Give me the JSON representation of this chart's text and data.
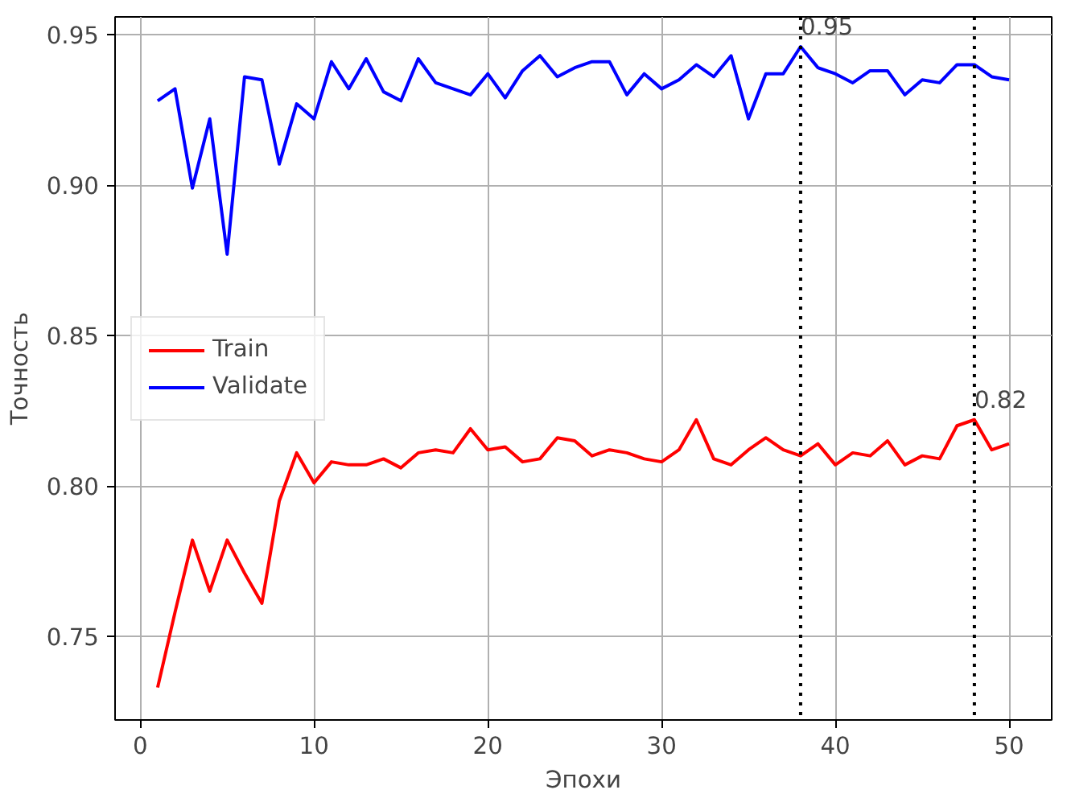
{
  "chart_data": {
    "type": "line",
    "xlabel": "Эпохи",
    "ylabel": "Точность",
    "x": [
      1,
      2,
      3,
      4,
      5,
      6,
      7,
      8,
      9,
      10,
      11,
      12,
      13,
      14,
      15,
      16,
      17,
      18,
      19,
      20,
      21,
      22,
      23,
      24,
      25,
      26,
      27,
      28,
      29,
      30,
      31,
      32,
      33,
      34,
      35,
      36,
      37,
      38,
      39,
      40,
      41,
      42,
      43,
      44,
      45,
      46,
      47,
      48,
      49,
      50
    ],
    "series": [
      {
        "name": "Train",
        "color": "#ff0000",
        "values": [
          0.733,
          0.758,
          0.782,
          0.765,
          0.782,
          0.771,
          0.761,
          0.795,
          0.811,
          0.801,
          0.808,
          0.807,
          0.807,
          0.809,
          0.806,
          0.811,
          0.812,
          0.811,
          0.819,
          0.812,
          0.813,
          0.808,
          0.809,
          0.816,
          0.815,
          0.81,
          0.812,
          0.811,
          0.809,
          0.808,
          0.812,
          0.822,
          0.809,
          0.807,
          0.812,
          0.816,
          0.812,
          0.81,
          0.814,
          0.807,
          0.811,
          0.81,
          0.815,
          0.807,
          0.81,
          0.809,
          0.82,
          0.822,
          0.812,
          0.814
        ]
      },
      {
        "name": "Validate",
        "color": "#0000ff",
        "values": [
          0.928,
          0.932,
          0.899,
          0.922,
          0.877,
          0.936,
          0.935,
          0.907,
          0.927,
          0.922,
          0.941,
          0.932,
          0.942,
          0.931,
          0.928,
          0.942,
          0.934,
          0.932,
          0.93,
          0.937,
          0.929,
          0.938,
          0.943,
          0.936,
          0.939,
          0.941,
          0.941,
          0.93,
          0.937,
          0.932,
          0.935,
          0.94,
          0.936,
          0.943,
          0.922,
          0.937,
          0.937,
          0.946,
          0.939,
          0.937,
          0.934,
          0.938,
          0.938,
          0.93,
          0.935,
          0.934,
          0.94,
          0.94,
          0.936,
          0.935
        ]
      }
    ],
    "xlim": [
      -1.45,
      52.45
    ],
    "ylim": [
      0.7222,
      0.9559
    ],
    "xticks": [
      0,
      10,
      20,
      30,
      40,
      50
    ],
    "yticks": [
      {
        "value": 0.75,
        "label": "0.75"
      },
      {
        "value": 0.8,
        "label": "0.80"
      },
      {
        "value": 0.85,
        "label": "0.85"
      },
      {
        "value": 0.9,
        "label": "0.90"
      },
      {
        "value": 0.95,
        "label": "0.95"
      }
    ],
    "ref_lines": [
      {
        "axis": "x",
        "value": 38,
        "color": "#000000",
        "line_style": "dotted"
      },
      {
        "axis": "x",
        "value": 48,
        "color": "#000000",
        "line_style": "dotted"
      }
    ],
    "annotations": [
      {
        "text": "0.95",
        "x": 38,
        "y": 0.95
      },
      {
        "text": "0.82",
        "x": 48,
        "y": 0.826
      }
    ],
    "grid": true,
    "legend": "left",
    "line_style": "solid"
  }
}
